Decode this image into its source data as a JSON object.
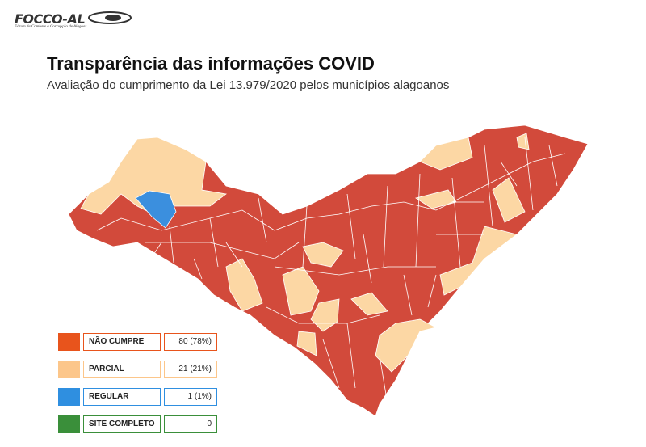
{
  "logo": {
    "name": "FOCCO-AL",
    "tagline": "Fórum de Combate à Corrupção de Alagoas"
  },
  "header": {
    "title": "Transparência das informações COVID",
    "subtitle": "Avaliação do cumprimento da Lei 13.979/2020  pelos municípios alagoanos"
  },
  "legend": {
    "items": [
      {
        "label": "NÃO CUMPRE",
        "count": "80 (78%)"
      },
      {
        "label": "PARCIAL",
        "count": "21 (21%)"
      },
      {
        "label": "REGULAR",
        "count": "1 (1%)"
      },
      {
        "label": "SITE COMPLETO",
        "count": "0"
      }
    ]
  }
}
